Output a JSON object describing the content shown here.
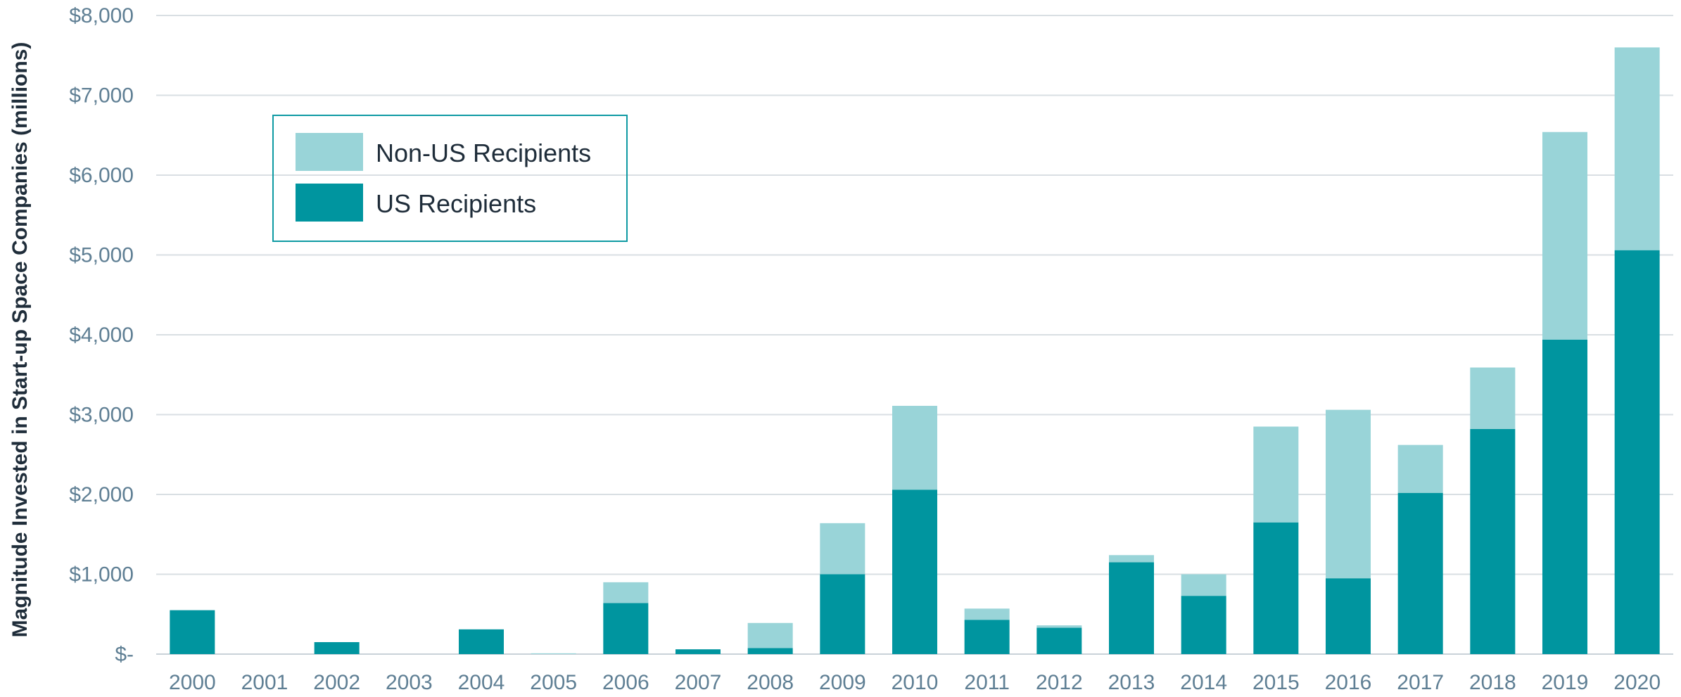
{
  "chart_data": {
    "type": "bar",
    "stacked": true,
    "categories": [
      "2000",
      "2001",
      "2002",
      "2003",
      "2004",
      "2005",
      "2006",
      "2007",
      "2008",
      "2009",
      "2010",
      "2011",
      "2012",
      "2013",
      "2014",
      "2015",
      "2016",
      "2017",
      "2018",
      "2019",
      "2020"
    ],
    "series": [
      {
        "name": "US Recipients",
        "color": "#00959f",
        "values": [
          550,
          0,
          150,
          0,
          310,
          0,
          640,
          60,
          75,
          1000,
          2060,
          430,
          330,
          1150,
          730,
          1650,
          950,
          2020,
          2820,
          3940,
          5060
        ]
      },
      {
        "name": "Non-US Recipients",
        "color": "#99d4d8",
        "values": [
          0,
          0,
          0,
          0,
          0,
          10,
          260,
          0,
          315,
          640,
          1050,
          140,
          30,
          90,
          270,
          1200,
          2110,
          600,
          770,
          2600,
          2540
        ]
      }
    ],
    "ylim": [
      0,
      8000
    ],
    "yticks": [
      0,
      1000,
      2000,
      3000,
      4000,
      5000,
      6000,
      7000,
      8000
    ],
    "ytick_labels": [
      "$-",
      "$1,000",
      "$2,000",
      "$3,000",
      "$4,000",
      "$5,000",
      "$6,000",
      "$7,000",
      "$8,000"
    ],
    "xlabel": "",
    "ylabel": "Magnitude Invested in Start-up Space Companies (millions)",
    "title": "",
    "grid": true,
    "legend": {
      "placement": "top-left",
      "entries": [
        "Non-US Recipients",
        "US Recipients"
      ]
    }
  }
}
